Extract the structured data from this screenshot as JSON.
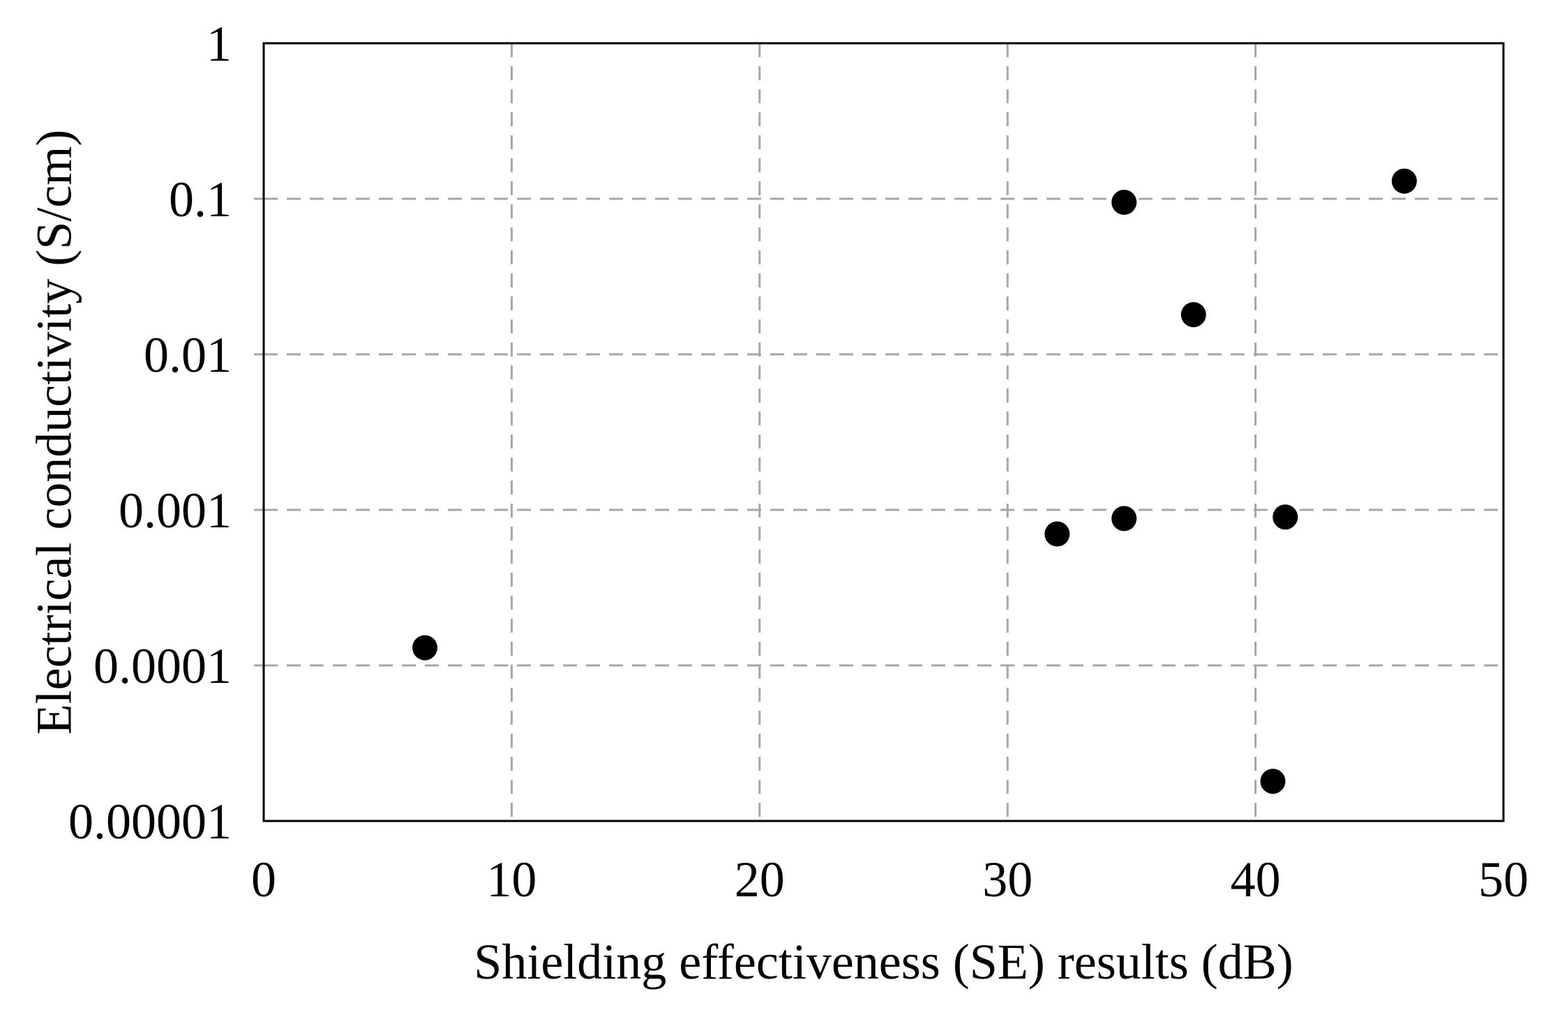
{
  "chart_data": {
    "type": "scatter",
    "title": "",
    "xlabel": "Shielding effectiveness (SE) results (dB)",
    "ylabel": "Electrical conductivity (S/cm)",
    "x_scale": "linear",
    "y_scale": "log",
    "xlim": [
      0,
      50
    ],
    "ylim": [
      1e-05,
      1
    ],
    "x_ticks": [
      0,
      10,
      20,
      30,
      40,
      50
    ],
    "x_tick_labels": [
      "0",
      "10",
      "20",
      "30",
      "40",
      "50"
    ],
    "y_ticks": [
      1,
      0.1,
      0.01,
      0.001,
      0.0001,
      1e-05
    ],
    "y_tick_labels": [
      "1",
      "0.1",
      "0.01",
      "0.001",
      "0.0001",
      "0.00001"
    ],
    "grid": true,
    "legend": false,
    "points": [
      {
        "x": 6.5,
        "y": 0.00013
      },
      {
        "x": 32,
        "y": 0.0007
      },
      {
        "x": 34.7,
        "y": 0.095
      },
      {
        "x": 34.7,
        "y": 0.00088
      },
      {
        "x": 37.5,
        "y": 0.018
      },
      {
        "x": 40.7,
        "y": 1.8e-05
      },
      {
        "x": 41.2,
        "y": 0.0009
      },
      {
        "x": 46,
        "y": 0.13
      }
    ],
    "marker": {
      "shape": "circle",
      "color": "#000000",
      "radius_px": 18
    },
    "colors": {
      "axis": "#000000",
      "gridline": "#a6a6a6",
      "background": "#ffffff",
      "text": "#000000"
    }
  }
}
